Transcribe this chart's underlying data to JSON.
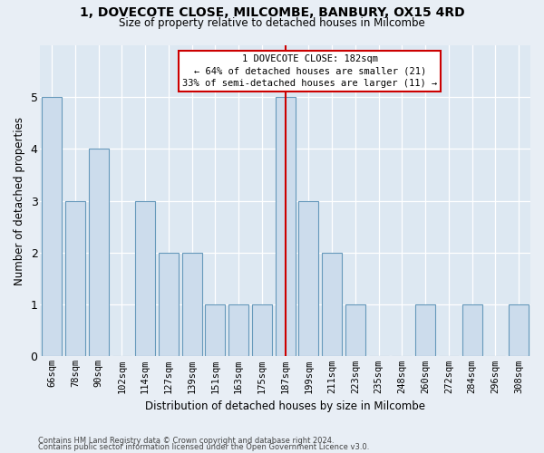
{
  "title_line1": "1, DOVECOTE CLOSE, MILCOMBE, BANBURY, OX15 4RD",
  "title_line2": "Size of property relative to detached houses in Milcombe",
  "xlabel": "Distribution of detached houses by size in Milcombe",
  "ylabel": "Number of detached properties",
  "categories": [
    "66sqm",
    "78sqm",
    "90sqm",
    "102sqm",
    "114sqm",
    "127sqm",
    "139sqm",
    "151sqm",
    "163sqm",
    "175sqm",
    "187sqm",
    "199sqm",
    "211sqm",
    "223sqm",
    "235sqm",
    "248sqm",
    "260sqm",
    "272sqm",
    "284sqm",
    "296sqm",
    "308sqm"
  ],
  "values": [
    5,
    3,
    4,
    0,
    3,
    2,
    2,
    1,
    1,
    1,
    5,
    3,
    2,
    1,
    0,
    0,
    1,
    0,
    1,
    0,
    1
  ],
  "bar_color": "#ccdcec",
  "bar_edge_color": "#6699bb",
  "highlight_index": 10,
  "highlight_line_color": "#cc0000",
  "annotation_line1": "1 DOVECOTE CLOSE: 182sqm",
  "annotation_line2": "← 64% of detached houses are smaller (21)",
  "annotation_line3": "33% of semi-detached houses are larger (11) →",
  "annotation_box_color": "#ffffff",
  "annotation_box_edge": "#cc0000",
  "ylim": [
    0,
    6
  ],
  "yticks": [
    0,
    1,
    2,
    3,
    4,
    5
  ],
  "footer_line1": "Contains HM Land Registry data © Crown copyright and database right 2024.",
  "footer_line2": "Contains public sector information licensed under the Open Government Licence v3.0.",
  "bg_color": "#e8eef5",
  "plot_bg_color": "#dde8f2"
}
